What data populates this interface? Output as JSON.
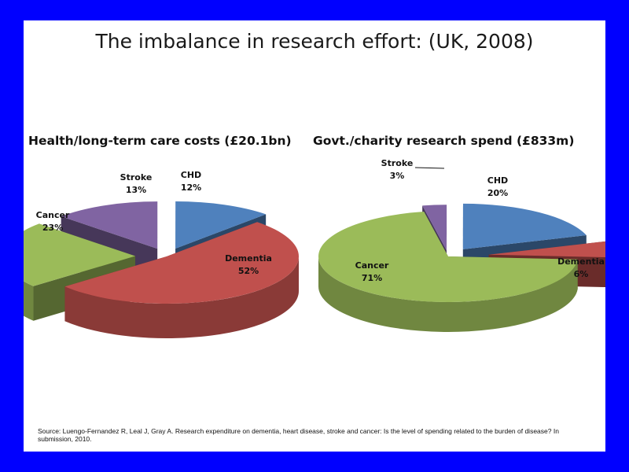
{
  "slide": {
    "title": "The imbalance in research effort: (UK, 2008)",
    "source": "Source: Luengo-Fernandez R, Leal J, Gray A. Research expenditure on dementia, heart disease, stroke and cancer: Is the level of spending related to the burden of disease? In submission, 2010."
  },
  "colors": {
    "frame": "#0000FF",
    "CHD": "#4F81BD",
    "Dementia": "#C0504D",
    "Cancer": "#9BBB59",
    "Stroke": "#8064A2"
  },
  "chart_data": [
    {
      "type": "pie",
      "title": "Health/long-term care costs (£20.1bn)",
      "slices": [
        {
          "name": "CHD",
          "value": 12,
          "label": "12%"
        },
        {
          "name": "Dementia",
          "value": 52,
          "label": "52%"
        },
        {
          "name": "Cancer",
          "value": 23,
          "label": "23%"
        },
        {
          "name": "Stroke",
          "value": 13,
          "label": "13%"
        }
      ],
      "exploded": true,
      "style": "3d"
    },
    {
      "type": "pie",
      "title": "Govt./charity research spend (£833m)",
      "slices": [
        {
          "name": "CHD",
          "value": 20,
          "label": "20%"
        },
        {
          "name": "Dementia",
          "value": 6,
          "label": "6%"
        },
        {
          "name": "Cancer",
          "value": 71,
          "label": "71%"
        },
        {
          "name": "Stroke",
          "value": 3,
          "label": "3%"
        }
      ],
      "exploded": true,
      "style": "3d"
    }
  ]
}
